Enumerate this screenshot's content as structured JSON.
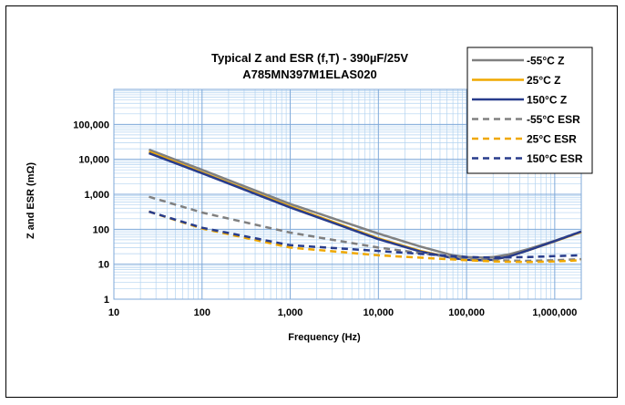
{
  "chart_data": {
    "type": "line",
    "title": [
      "Typical Z and ESR (f,T) - 390µF/25V",
      "A785MN397M1ELAS020"
    ],
    "xlabel": "Frequency (Hz)",
    "ylabel": "Z and ESR (mΩ)",
    "x_scale": "log",
    "y_scale": "log",
    "xlim": [
      10,
      2000000
    ],
    "ylim": [
      1,
      1000000
    ],
    "x_ticks": [
      {
        "value": 10,
        "label": "10"
      },
      {
        "value": 100,
        "label": "100"
      },
      {
        "value": 1000,
        "label": "1,000"
      },
      {
        "value": 10000,
        "label": "10,000"
      },
      {
        "value": 100000,
        "label": "100,000"
      },
      {
        "value": 1000000,
        "label": "1,000,000"
      }
    ],
    "y_ticks": [
      {
        "value": 1,
        "label": "1"
      },
      {
        "value": 10,
        "label": "10"
      },
      {
        "value": 100,
        "label": "100"
      },
      {
        "value": 1000,
        "label": "1,000"
      },
      {
        "value": 10000,
        "label": "10,000"
      },
      {
        "value": 100000,
        "label": "100,000"
      }
    ],
    "grid": true,
    "legend_position": "top-right",
    "series": [
      {
        "name": "-55°C Z",
        "color": "#808080",
        "dash": "solid",
        "x": [
          25,
          100,
          1000,
          10000,
          30000,
          70000,
          100000,
          150000,
          200000,
          300000,
          500000,
          1000000,
          2000000
        ],
        "y": [
          19000,
          5000,
          530,
          75,
          32,
          18,
          16,
          15.5,
          16,
          19,
          27,
          47,
          85
        ]
      },
      {
        "name": "25°C Z",
        "color": "#F0A800",
        "dash": "solid",
        "x": [
          25,
          100,
          1000,
          10000,
          30000,
          70000,
          100000,
          150000,
          200000,
          300000,
          500000,
          1000000,
          2000000
        ],
        "y": [
          16500,
          4200,
          450,
          55,
          24,
          15,
          13.5,
          13,
          13.5,
          16.5,
          25,
          45,
          83
        ]
      },
      {
        "name": "150°C Z",
        "color": "#283C8C",
        "dash": "solid",
        "x": [
          25,
          100,
          1000,
          10000,
          30000,
          70000,
          100000,
          150000,
          200000,
          300000,
          500000,
          1000000,
          2000000
        ],
        "y": [
          15000,
          4000,
          420,
          52,
          23,
          15,
          13.5,
          13,
          13.5,
          16.5,
          25,
          46,
          86
        ]
      },
      {
        "name": "-55°C ESR",
        "color": "#808080",
        "dash": "dashed",
        "x": [
          25,
          100,
          1000,
          10000,
          100000,
          200000,
          500000,
          1000000,
          2000000
        ],
        "y": [
          850,
          300,
          80,
          30,
          14,
          13,
          12.5,
          13,
          14
        ]
      },
      {
        "name": "25°C ESR",
        "color": "#F0A800",
        "dash": "dashed",
        "x": [
          25,
          100,
          1000,
          10000,
          100000,
          200000,
          500000,
          1000000,
          2000000
        ],
        "y": [
          320,
          105,
          30,
          18,
          13,
          12,
          11.5,
          12,
          13
        ]
      },
      {
        "name": "150°C ESR",
        "color": "#283C8C",
        "dash": "dashed",
        "x": [
          25,
          100,
          1000,
          10000,
          100000,
          200000,
          500000,
          1000000,
          2000000
        ],
        "y": [
          320,
          110,
          35,
          24,
          16,
          15.5,
          16,
          17,
          18
        ]
      }
    ]
  }
}
